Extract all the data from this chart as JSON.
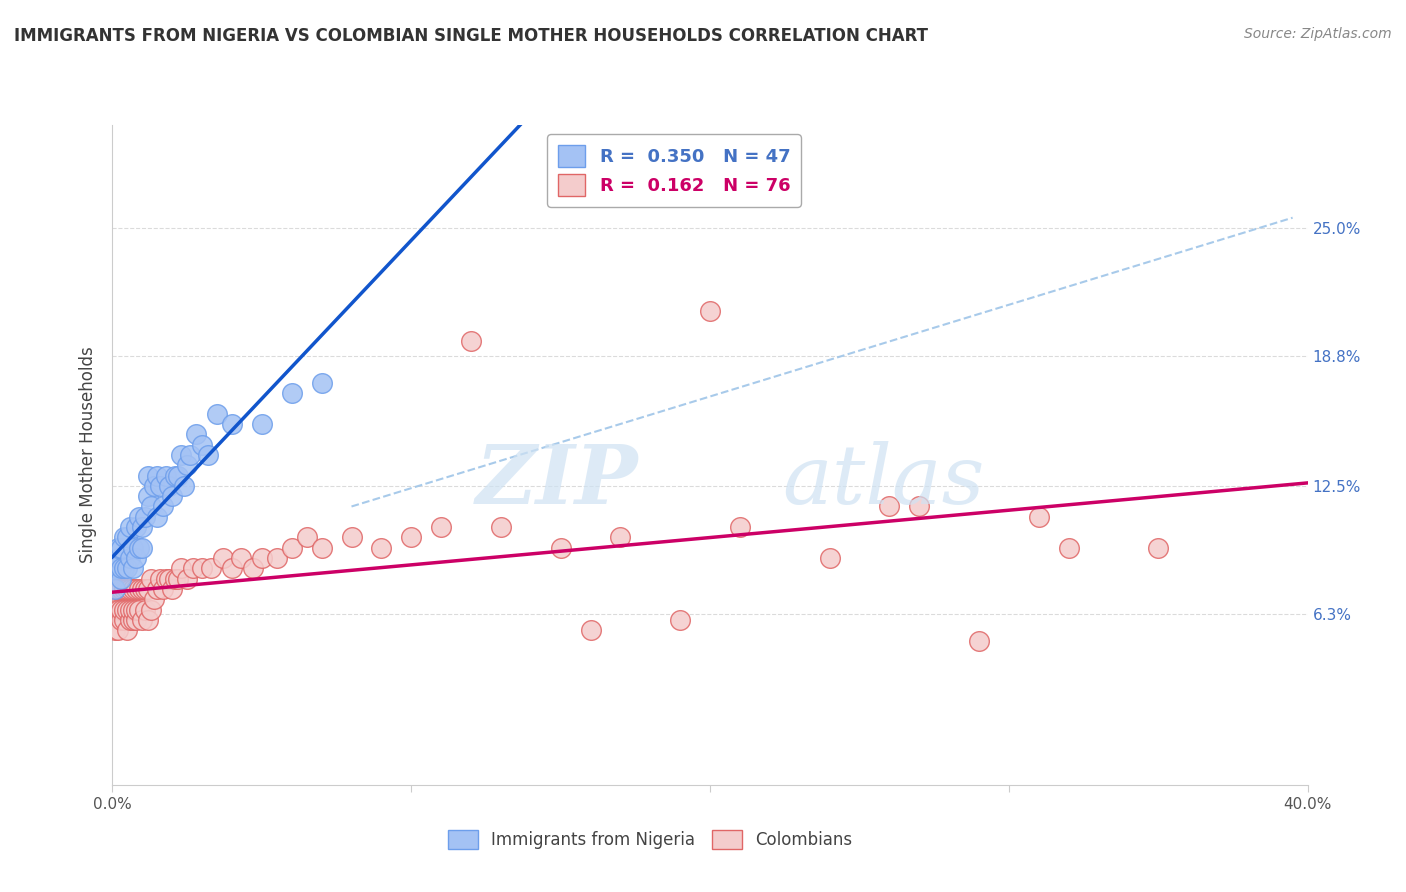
{
  "title": "IMMIGRANTS FROM NIGERIA VS COLOMBIAN SINGLE MOTHER HOUSEHOLDS CORRELATION CHART",
  "source": "Source: ZipAtlas.com",
  "ylabel": "Single Mother Households",
  "xlim": [
    0.0,
    0.4
  ],
  "ylim": [
    -0.02,
    0.3
  ],
  "yticks": [
    0.063,
    0.125,
    0.188,
    0.25
  ],
  "ytick_labels": [
    "6.3%",
    "12.5%",
    "18.8%",
    "25.0%"
  ],
  "nigeria_R": 0.35,
  "nigeria_N": 47,
  "colombia_R": 0.162,
  "colombia_N": 76,
  "nigeria_color": "#a4c2f4",
  "nigeria_edge_color": "#6d9eeb",
  "colombia_color": "#f4cccc",
  "colombia_edge_color": "#e06666",
  "nigeria_line_color": "#1155cc",
  "colombia_line_color": "#cc0066",
  "dashed_line_color": "#6fa8dc",
  "nigeria_scatter_x": [
    0.001,
    0.001,
    0.002,
    0.002,
    0.003,
    0.003,
    0.003,
    0.004,
    0.004,
    0.005,
    0.005,
    0.006,
    0.006,
    0.007,
    0.007,
    0.008,
    0.008,
    0.009,
    0.009,
    0.01,
    0.01,
    0.011,
    0.012,
    0.012,
    0.013,
    0.014,
    0.015,
    0.015,
    0.016,
    0.017,
    0.018,
    0.019,
    0.02,
    0.021,
    0.022,
    0.023,
    0.024,
    0.025,
    0.026,
    0.028,
    0.03,
    0.032,
    0.035,
    0.04,
    0.05,
    0.06,
    0.07
  ],
  "nigeria_scatter_y": [
    0.075,
    0.085,
    0.09,
    0.095,
    0.08,
    0.085,
    0.095,
    0.085,
    0.1,
    0.085,
    0.1,
    0.09,
    0.105,
    0.085,
    0.095,
    0.09,
    0.105,
    0.095,
    0.11,
    0.095,
    0.105,
    0.11,
    0.12,
    0.13,
    0.115,
    0.125,
    0.11,
    0.13,
    0.125,
    0.115,
    0.13,
    0.125,
    0.12,
    0.13,
    0.13,
    0.14,
    0.125,
    0.135,
    0.14,
    0.15,
    0.145,
    0.14,
    0.16,
    0.155,
    0.155,
    0.17,
    0.175
  ],
  "colombia_scatter_x": [
    0.001,
    0.001,
    0.001,
    0.002,
    0.002,
    0.002,
    0.003,
    0.003,
    0.003,
    0.004,
    0.004,
    0.004,
    0.005,
    0.005,
    0.005,
    0.006,
    0.006,
    0.006,
    0.007,
    0.007,
    0.007,
    0.008,
    0.008,
    0.008,
    0.009,
    0.009,
    0.01,
    0.01,
    0.011,
    0.011,
    0.012,
    0.012,
    0.013,
    0.013,
    0.014,
    0.015,
    0.016,
    0.017,
    0.018,
    0.019,
    0.02,
    0.021,
    0.022,
    0.023,
    0.025,
    0.027,
    0.03,
    0.033,
    0.037,
    0.04,
    0.043,
    0.047,
    0.05,
    0.055,
    0.06,
    0.065,
    0.07,
    0.08,
    0.09,
    0.1,
    0.11,
    0.12,
    0.13,
    0.15,
    0.16,
    0.17,
    0.19,
    0.2,
    0.21,
    0.24,
    0.26,
    0.27,
    0.29,
    0.31,
    0.32,
    0.35
  ],
  "colombia_scatter_y": [
    0.055,
    0.065,
    0.075,
    0.055,
    0.065,
    0.075,
    0.06,
    0.065,
    0.075,
    0.06,
    0.065,
    0.075,
    0.055,
    0.065,
    0.075,
    0.06,
    0.065,
    0.075,
    0.06,
    0.065,
    0.075,
    0.06,
    0.065,
    0.075,
    0.065,
    0.075,
    0.06,
    0.075,
    0.065,
    0.075,
    0.06,
    0.075,
    0.065,
    0.08,
    0.07,
    0.075,
    0.08,
    0.075,
    0.08,
    0.08,
    0.075,
    0.08,
    0.08,
    0.085,
    0.08,
    0.085,
    0.085,
    0.085,
    0.09,
    0.085,
    0.09,
    0.085,
    0.09,
    0.09,
    0.095,
    0.1,
    0.095,
    0.1,
    0.095,
    0.1,
    0.105,
    0.195,
    0.105,
    0.095,
    0.055,
    0.1,
    0.06,
    0.21,
    0.105,
    0.09,
    0.115,
    0.115,
    0.05,
    0.11,
    0.095,
    0.095
  ],
  "background_color": "#ffffff",
  "grid_color": "#cccccc",
  "title_fontsize": 12,
  "axis_label_fontsize": 12,
  "tick_fontsize": 11
}
